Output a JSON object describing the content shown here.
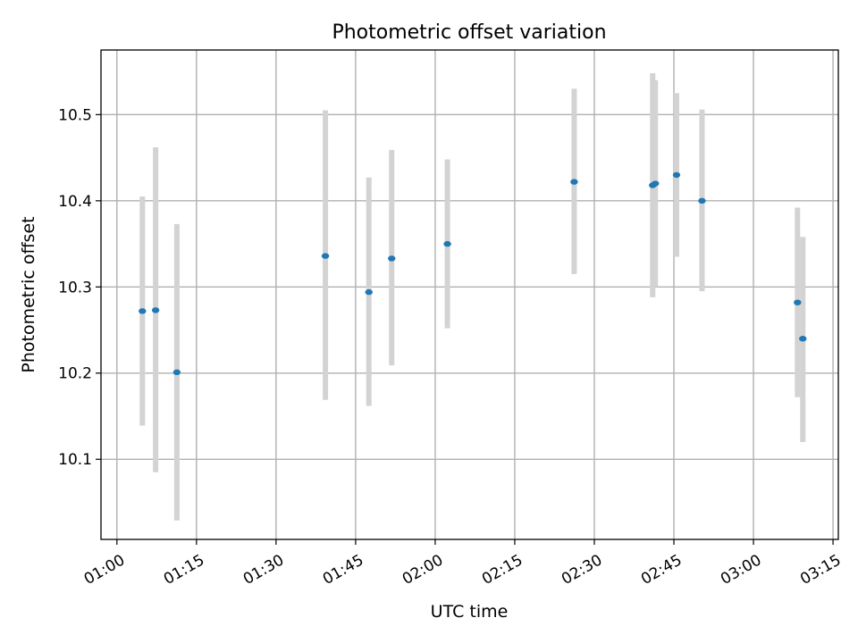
{
  "chart_data": {
    "type": "scatter",
    "title": "Photometric offset variation",
    "xlabel": "UTC time",
    "ylabel": "Photometric offset",
    "grid": true,
    "x_unit": "minutes",
    "xlim": [
      "00:57",
      "03:16"
    ],
    "ylim": [
      10.007,
      10.575
    ],
    "xticks": [
      "01:00",
      "01:15",
      "01:30",
      "01:45",
      "02:00",
      "02:15",
      "02:30",
      "02:45",
      "03:00",
      "03:15"
    ],
    "yticks": [
      10.1,
      10.2,
      10.3,
      10.4,
      10.5
    ],
    "ytick_labels": [
      "10.1",
      "10.2",
      "10.3",
      "10.4",
      "10.5"
    ],
    "marker_color": "#1f77b4",
    "errorbar_color": "#d3d3d3",
    "points": [
      {
        "x": "01:04.8",
        "y": 10.272,
        "ylow": 10.139,
        "yhigh": 10.405
      },
      {
        "x": "01:07.3",
        "y": 10.273,
        "ylow": 10.085,
        "yhigh": 10.462
      },
      {
        "x": "01:11.3",
        "y": 10.201,
        "ylow": 10.029,
        "yhigh": 10.373
      },
      {
        "x": "01:39.3",
        "y": 10.336,
        "ylow": 10.169,
        "yhigh": 10.505
      },
      {
        "x": "01:47.5",
        "y": 10.294,
        "ylow": 10.162,
        "yhigh": 10.427
      },
      {
        "x": "01:51.8",
        "y": 10.333,
        "ylow": 10.209,
        "yhigh": 10.459
      },
      {
        "x": "02:02.3",
        "y": 10.35,
        "ylow": 10.252,
        "yhigh": 10.448
      },
      {
        "x": "02:26.2",
        "y": 10.422,
        "ylow": 10.315,
        "yhigh": 10.53
      },
      {
        "x": "02:41.0",
        "y": 10.418,
        "ylow": 10.288,
        "yhigh": 10.548
      },
      {
        "x": "02:41.5",
        "y": 10.42,
        "ylow": 10.3,
        "yhigh": 10.54
      },
      {
        "x": "02:45.5",
        "y": 10.43,
        "ylow": 10.335,
        "yhigh": 10.525
      },
      {
        "x": "02:50.3",
        "y": 10.4,
        "ylow": 10.295,
        "yhigh": 10.506
      },
      {
        "x": "03:08.3",
        "y": 10.282,
        "ylow": 10.172,
        "yhigh": 10.392
      },
      {
        "x": "03:09.3",
        "y": 10.24,
        "ylow": 10.12,
        "yhigh": 10.358
      }
    ]
  }
}
